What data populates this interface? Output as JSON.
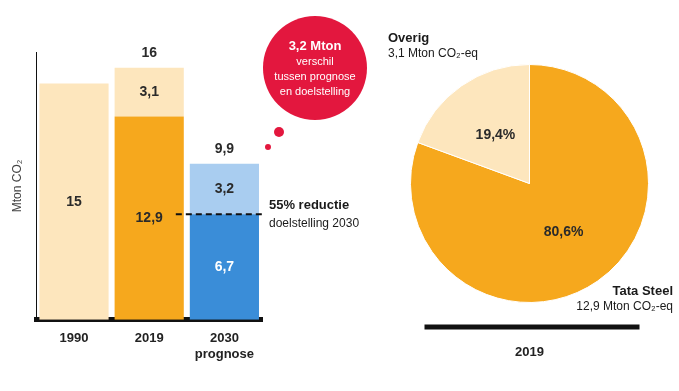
{
  "chart_data": [
    {
      "type": "bar",
      "stacked": true,
      "ylabel": "Mton CO₂",
      "categories": [
        "1990",
        "2019",
        "2030"
      ],
      "category_notes": [
        null,
        null,
        "prognose"
      ],
      "series": [
        {
          "values": [
            15,
            12.9,
            6.7
          ],
          "value_labels": [
            "15",
            "12,9",
            "6,7"
          ],
          "colors": [
            "#fde6bd",
            "#f6a81d",
            "#3a8dd8"
          ]
        },
        {
          "values": [
            null,
            3.1,
            3.2
          ],
          "value_labels": [
            null,
            "3,1",
            "3,2"
          ],
          "colors": [
            "#fde6bd",
            "#fde6bd",
            "#a9cdf0"
          ]
        }
      ],
      "totals": [
        null,
        16,
        9.9
      ],
      "total_labels": [
        null,
        "16",
        "9,9"
      ],
      "target": 6.7,
      "target_label": [
        "55% reductie",
        "doelstelling 2030"
      ],
      "callout": [
        "3,2 Mton",
        "verschil",
        "tussen prognose",
        "en doelstelling"
      ],
      "data_labels": true,
      "ylim": [
        0,
        17
      ],
      "yticks": [],
      "tick_labels": "x",
      "grid": false
    },
    {
      "type": "pie",
      "categories": [
        "Tata Steel",
        "Overig"
      ],
      "category_notes": [
        "12,9 Mton CO₂-eq",
        "3,1 Mton CO₂-eq"
      ],
      "values": [
        80.6,
        19.4
      ],
      "value_labels": [
        "80,6%",
        "19,4%"
      ],
      "colors": [
        "#f6a81d",
        "#fde6bd"
      ],
      "xlabel": "2019",
      "data_labels": true
    }
  ]
}
